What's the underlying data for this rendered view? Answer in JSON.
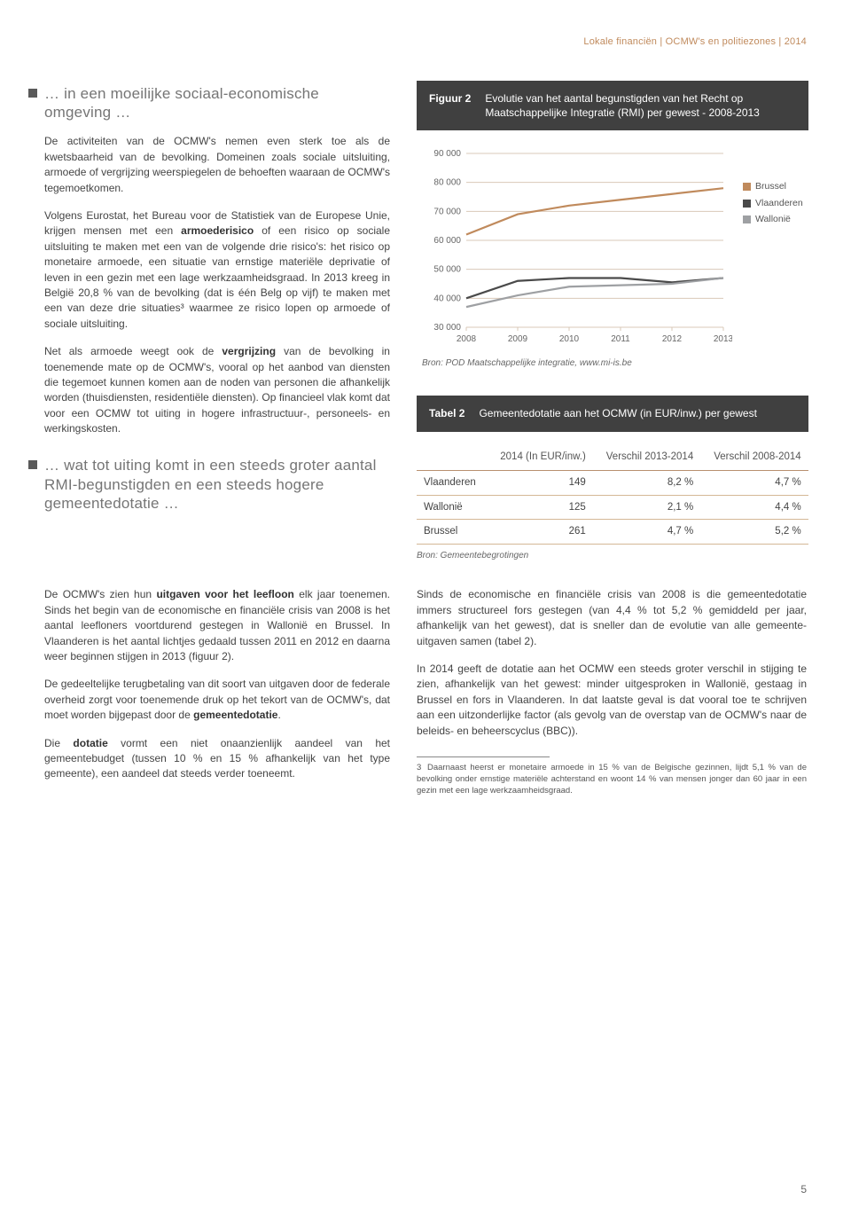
{
  "header": {
    "breadcrumb": "Lokale financiën | OCMW's en politiezones | 2014"
  },
  "section1": {
    "heading": "… in een moeilijke sociaal-economische omgeving …",
    "p1a": "De activiteiten van de OCMW's nemen even sterk toe als de kwetsbaarheid van de bevolking. Domeinen zoals sociale uitsluiting, armoede of vergrijzing weerspiegelen de behoeften waaraan de OCMW's tegemoetkomen.",
    "p2a": "Volgens Eurostat, het Bureau voor de Statistiek van de Europese Unie, krijgen mensen met een ",
    "p2b": "armoederisico",
    "p2c": " of een risico op sociale uitsluiting te maken met een van de volgende drie risico's: het risico op monetaire armoede, een situatie van ernstige materiële deprivatie of leven in een gezin met een lage werkzaamheidsgraad. In 2013 kreeg in België 20,8 % van de bevolking (dat is één Belg op vijf) te maken met een van deze drie situaties³ waarmee ze risico lopen op armoede of sociale uitsluiting.",
    "p3a": "Net als armoede weegt ook de ",
    "p3b": "vergrijzing",
    "p3c": " van de bevolking in toenemende mate op de OCMW's, vooral op het aanbod van diensten die tegemoet kunnen komen aan de noden van personen die afhankelijk worden (thuisdiensten, residentiële diensten). Op financieel vlak komt dat voor een OCMW tot uiting in hogere infrastructuur-, personeels- en werkingskosten."
  },
  "section2": {
    "heading": "… wat tot uiting komt in een steeds groter aantal RMI-begunstigden en een steeds hogere gemeentedotatie …"
  },
  "lower_left": {
    "p1a": "De OCMW's zien hun ",
    "p1b": "uitgaven voor het leefloon",
    "p1c": " elk jaar toenemen. Sinds het begin van de economische en financiële crisis van 2008 is het aantal leefloners voortdurend gestegen in Wallonië en Brussel. In Vlaanderen is het aantal lichtjes gedaald tussen 2011 en 2012 en daarna weer beginnen stijgen in 2013 (figuur 2).",
    "p2a": "De gedeeltelijke terugbetaling van dit soort van uitgaven door de federale overheid zorgt voor toenemende druk op het tekort van de OCMW's, dat moet worden bijgepast door de ",
    "p2b": "gemeentedotatie",
    "p2c": ".",
    "p3a": "Die ",
    "p3b": "dotatie",
    "p3c": " vormt een niet onaanzienlijk aandeel van het gemeentebudget (tussen 10 % en 15 % afhankelijk van het type gemeente), een aandeel dat steeds verder toeneemt."
  },
  "lower_right": {
    "p1": "Sinds de economische en financiële crisis van 2008 is die gemeentedotatie immers structureel fors gestegen (van 4,4 % tot 5,2 % gemiddeld per jaar, afhankelijk van het gewest), dat is sneller dan de evolutie van alle gemeente-uitgaven samen (tabel 2).",
    "p2": "In 2014 geeft de dotatie aan het OCMW een steeds groter verschil in stijging te zien, afhankelijk van het gewest: minder uitgesproken in Wallonië, gestaag in Brussel en fors in Vlaanderen. In dat laatste geval is dat vooral toe te schrijven aan een uitzonderlijke factor (als gevolg van de overstap van de OCMW's naar de beleids- en beheerscyclus (BBC))."
  },
  "figure2": {
    "label": "Figuur 2",
    "title": "Evolutie van het aantal begunstigden van het Recht op Maatschappelijke Integratie (RMI) per gewest - 2008-2013",
    "source": "Bron: POD Maatschappelijke integratie, www.mi-is.be",
    "y_ticks": [
      "90 000",
      "80 000",
      "70 000",
      "60 000",
      "50 000",
      "40 000",
      "30 000"
    ],
    "y_min": 30000,
    "y_max": 90000,
    "x_ticks": [
      "2008",
      "2009",
      "2010",
      "2011",
      "2012",
      "2013"
    ],
    "series": [
      {
        "name": "Brussel",
        "color": "#c08a5c",
        "values": [
          62000,
          69000,
          72000,
          74000,
          76000,
          78000
        ]
      },
      {
        "name": "Vlaanderen",
        "color": "#4a4a4a",
        "values": [
          40000,
          46000,
          47000,
          47000,
          45500,
          47000
        ]
      },
      {
        "name": "Wallonië",
        "color": "#9ea0a3",
        "values": [
          37000,
          41000,
          44000,
          44500,
          45000,
          47000
        ]
      }
    ],
    "legend": [
      {
        "label": "Brussel",
        "color": "#c08a5c"
      },
      {
        "label": "Vlaanderen",
        "color": "#4a4a4a"
      },
      {
        "label": "Wallonië",
        "color": "#9ea0a3"
      }
    ],
    "chart_bg": "#ffffff",
    "grid_color": "#d9c8b8",
    "axis_text_color": "#666666"
  },
  "table2": {
    "label": "Tabel 2",
    "title": "Gemeentedotatie aan het OCMW (in EUR/inw.) per gewest",
    "columns": [
      "",
      "2014 (In EUR/inw.)",
      "Verschil 2013-2014",
      "Verschil 2008-2014"
    ],
    "rows": [
      [
        "Vlaanderen",
        "149",
        "8,2 %",
        "4,7 %"
      ],
      [
        "Wallonië",
        "125",
        "2,1 %",
        "4,4 %"
      ],
      [
        "Brussel",
        "261",
        "4,7 %",
        "5,2 %"
      ]
    ],
    "source": "Bron: Gemeentebegrotingen"
  },
  "footnote": {
    "num": "3",
    "text": "Daarnaast heerst er monetaire armoede in 15 % van de Belgische gezinnen, lijdt 5,1 % van de bevolking onder ernstige materiële achterstand en woont 14 % van mensen jonger dan 60 jaar in een gezin met een lage werkzaamheidsgraad."
  },
  "page_number": "5"
}
